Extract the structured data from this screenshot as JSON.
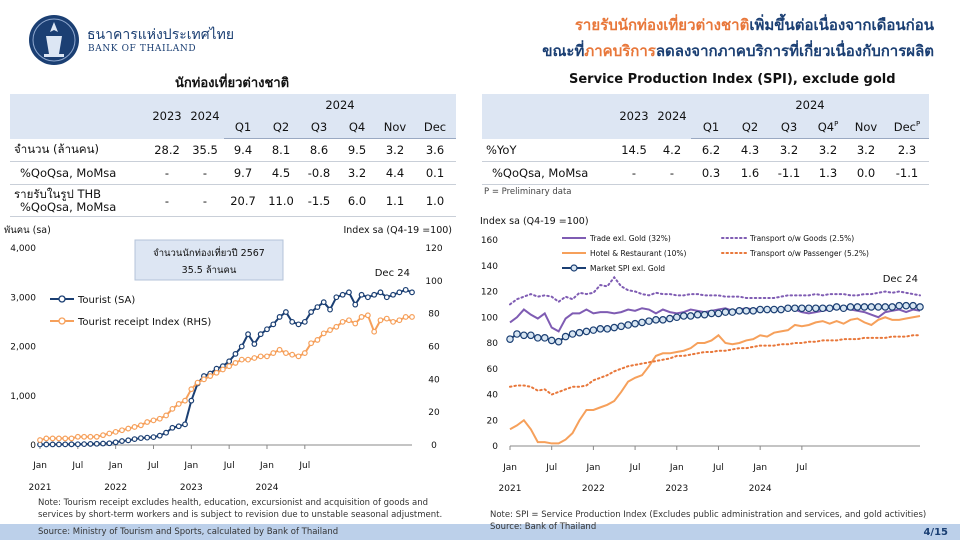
{
  "header": {
    "bank_name_th": "ธนาคารแห่งประเทศไทย",
    "bank_name_en": "BANK OF THAILAND",
    "headline_line1_orange": "รายรับนักท่องเที่ยวต่างชาติ",
    "headline_line1_navy": "เพิ่มขึ้นต่อเนื่องจากเดือนก่อน",
    "headline_line2_navy_a": "ขณะที่",
    "headline_line2_orange": "ภาคบริการ",
    "headline_line2_navy_b": "ลดลงจากภาคบริการที่เกี่ยวเนื่องกับการผลิต"
  },
  "left_table": {
    "title": "นักท่องเที่ยวต่างชาติ",
    "year_headers": [
      "2023",
      "2024",
      "2024"
    ],
    "quarter_headers": [
      "Q1",
      "Q2",
      "Q3",
      "Q4",
      "Nov",
      "Dec"
    ],
    "rows": [
      {
        "label": "จำนวน (ล้านคน)",
        "values": [
          "28.2",
          "35.5",
          "9.4",
          "8.1",
          "8.6",
          "9.5",
          "3.2",
          "3.6"
        ]
      },
      {
        "label": "%QoQsa, MoMsa",
        "values": [
          "-",
          "-",
          "9.7",
          "4.5",
          "-0.8",
          "3.2",
          "4.4",
          "0.1"
        ]
      },
      {
        "label": "รายรับในรูป THB",
        "label2": "%QoQsa, MoMsa",
        "values": [
          "-",
          "-",
          "20.7",
          "11.0",
          "-1.5",
          "6.0",
          "1.1",
          "1.0"
        ]
      }
    ]
  },
  "right_table": {
    "title": "Service Production Index (SPI), exclude gold",
    "year_headers": [
      "2023",
      "2024",
      "2024"
    ],
    "quarter_headers": [
      "Q1",
      "Q2",
      "Q3",
      "Q4",
      "Nov",
      "Dec"
    ],
    "superscript": "P",
    "rows": [
      {
        "label": "%YoY",
        "values": [
          "14.5",
          "4.2",
          "6.2",
          "4.3",
          "3.2",
          "3.2",
          "3.2",
          "2.3"
        ]
      },
      {
        "label": "%QoQsa, MoMsa",
        "values": [
          "-",
          "-",
          "0.3",
          "1.6",
          "-1.1",
          "1.3",
          "0.0",
          "-1.1"
        ]
      }
    ],
    "note": "P = Preliminary data"
  },
  "chart_data": [
    {
      "type": "line",
      "ylabel_left": "พันคน (sa)",
      "ylabel_right": "Index sa (Q4-19 =100)",
      "ylim_left": [
        0,
        4000
      ],
      "ylim_right": [
        0,
        120
      ],
      "yticks_left": [
        "0",
        "1,000",
        "2,000",
        "3,000",
        "4,000"
      ],
      "yticks_right": [
        "0",
        "20",
        "40",
        "60",
        "80",
        "100",
        "120"
      ],
      "x_month_labels": [
        "Jan",
        "Jul",
        "Jan",
        "Jul",
        "Jan",
        "Jul",
        "Jan",
        "Jul"
      ],
      "x_year_labels": [
        "2021",
        "2022",
        "2023",
        "2024"
      ],
      "annotation_box": [
        "จำนวนนักท่องเที่ยวปี 2567",
        "35.5 ล้านคน"
      ],
      "annotation_end": "Dec 24",
      "legend_position": "left",
      "series": [
        {
          "name": "Tourist (SA)",
          "axis": "left",
          "color": "#1b3f73",
          "values": [
            10,
            11,
            12,
            12,
            13,
            14,
            15,
            18,
            22,
            25,
            30,
            35,
            55,
            80,
            95,
            120,
            140,
            150,
            160,
            190,
            250,
            350,
            380,
            420,
            900,
            1250,
            1400,
            1450,
            1550,
            1600,
            1700,
            1850,
            2000,
            2250,
            2050,
            2250,
            2350,
            2450,
            2600,
            2700,
            2500,
            2450,
            2500,
            2700,
            2800,
            2900,
            2750,
            3000,
            3050,
            3100,
            2850,
            3050,
            3000,
            3050,
            3100,
            3000,
            3050,
            3100,
            3150,
            3100
          ]
        },
        {
          "name": "Tourist receipt Index (RHS)",
          "axis": "right",
          "color": "#f6a05b",
          "values": [
            3,
            4,
            4,
            4,
            4,
            4,
            5,
            5,
            5,
            5,
            6,
            7,
            8,
            9,
            10,
            11,
            12,
            14,
            15,
            16,
            18,
            22,
            25,
            27,
            34,
            38,
            40,
            42,
            44,
            46,
            48,
            50,
            52,
            52,
            53,
            54,
            54,
            56,
            58,
            56,
            55,
            54,
            56,
            62,
            64,
            68,
            70,
            72,
            75,
            76,
            74,
            78,
            79,
            69,
            76,
            77,
            75,
            76,
            78,
            78
          ]
        }
      ]
    },
    {
      "type": "line",
      "ylabel": "Index sa (Q4-19 =100)",
      "ylim": [
        0,
        160
      ],
      "yticks": [
        "0",
        "20",
        "40",
        "60",
        "80",
        "100",
        "120",
        "140",
        "160"
      ],
      "x_month_labels": [
        "Jan",
        "Jul",
        "Jan",
        "Jul",
        "Jan",
        "Jul",
        "Jan",
        "Jul"
      ],
      "x_year_labels": [
        "2021",
        "2022",
        "2023",
        "2024"
      ],
      "annotation_end": "Dec 24",
      "legend_position": "top",
      "series": [
        {
          "name": "Trade exl. Gold (32%)",
          "color": "#7f5cb3",
          "style": "solid",
          "values": [
            96,
            100,
            106,
            102,
            99,
            103,
            92,
            89,
            99,
            103,
            103,
            106,
            103,
            104,
            104,
            103,
            104,
            106,
            105,
            107,
            106,
            103,
            106,
            104,
            103,
            104,
            106,
            105,
            104,
            105,
            106,
            107,
            105,
            106,
            107,
            106,
            107,
            105,
            106,
            107,
            107,
            106,
            104,
            103,
            104,
            105,
            106,
            107,
            107,
            106,
            105,
            104,
            102,
            100,
            104,
            105,
            106,
            104,
            106,
            105
          ]
        },
        {
          "name": "Transport o/w Goods (2.5%)",
          "color": "#7f5cb3",
          "style": "dotted",
          "values": [
            110,
            114,
            116,
            118,
            116,
            117,
            116,
            112,
            116,
            114,
            119,
            118,
            119,
            125,
            124,
            131,
            124,
            121,
            120,
            118,
            117,
            119,
            118,
            118,
            117,
            117,
            118,
            118,
            117,
            117,
            117,
            116,
            116,
            116,
            115,
            115,
            115,
            115,
            115,
            116,
            117,
            117,
            117,
            117,
            118,
            117,
            118,
            118,
            118,
            117,
            117,
            118,
            118,
            119,
            120,
            119,
            120,
            119,
            118,
            117
          ]
        },
        {
          "name": "Hotel & Restaurant (10%)",
          "color": "#f6a05b",
          "style": "solid",
          "values": [
            13,
            16,
            20,
            13,
            3,
            3,
            2,
            2,
            5,
            10,
            20,
            28,
            28,
            30,
            32,
            35,
            42,
            50,
            53,
            55,
            62,
            70,
            72,
            72,
            73,
            74,
            76,
            80,
            80,
            82,
            86,
            80,
            79,
            80,
            82,
            83,
            86,
            85,
            88,
            89,
            90,
            94,
            93,
            94,
            96,
            97,
            95,
            97,
            95,
            98,
            99,
            96,
            94,
            98,
            100,
            98,
            98,
            99,
            100,
            101
          ]
        },
        {
          "name": "Transport o/w Passenger (5.2%)",
          "color": "#e8773a",
          "style": "dotted",
          "values": [
            46,
            47,
            47,
            46,
            43,
            44,
            40,
            42,
            44,
            46,
            46,
            47,
            51,
            53,
            55,
            58,
            60,
            62,
            63,
            64,
            65,
            66,
            67,
            68,
            70,
            70,
            71,
            72,
            73,
            73,
            74,
            74,
            75,
            76,
            76,
            77,
            78,
            78,
            78,
            79,
            79,
            80,
            80,
            81,
            81,
            82,
            82,
            82,
            83,
            83,
            83,
            84,
            84,
            84,
            84,
            85,
            85,
            85,
            86,
            86
          ]
        },
        {
          "name": "Market SPI exl. Gold",
          "color": "#1b3f73",
          "style": "marker",
          "values": [
            83,
            87,
            86,
            86,
            84,
            84,
            82,
            81,
            85,
            87,
            88,
            89,
            90,
            91,
            91,
            92,
            93,
            94,
            95,
            96,
            97,
            98,
            98,
            99,
            100,
            101,
            101,
            102,
            102,
            103,
            103,
            104,
            104,
            105,
            105,
            105,
            106,
            106,
            106,
            106,
            107,
            107,
            107,
            107,
            107,
            107,
            107,
            108,
            107,
            108,
            108,
            108,
            108,
            108,
            108,
            108,
            109,
            109,
            109,
            108
          ]
        }
      ]
    }
  ],
  "footer": {
    "left_note_1": "Note: Tourism receipt excludes health, education, excursionist and acquisition of goods and",
    "left_note_2": "services by short-term workers and is subject to revision due to unstable seasonal adjustment.",
    "left_source": "Source: Ministry of Tourism and Sports, calculated by Bank of Thailand",
    "right_note": "Note: SPI = Service Production Index (Excludes public administration and services, and gold activities)",
    "right_source": "Source: Bank of Thailand",
    "page": "4/15"
  }
}
